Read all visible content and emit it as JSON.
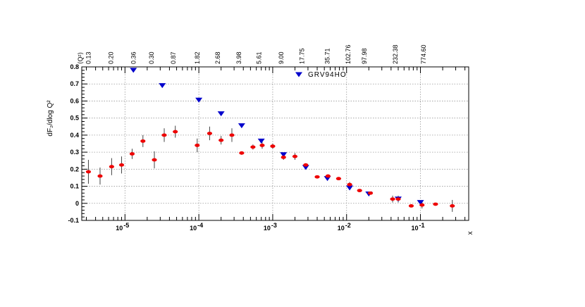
{
  "chart_data": {
    "type": "scatter",
    "ylabel": "dF₂/dlog Q²",
    "xlabel": "x",
    "top_axis_label": "⟨Q²⟩",
    "x_scale": "log",
    "xlim": [
      2.6e-06,
      0.45
    ],
    "ylim": [
      -0.1,
      0.8
    ],
    "y_ticks": [
      -0.1,
      0,
      0.1,
      0.2,
      0.3,
      0.4,
      0.5,
      0.6,
      0.7,
      0.8
    ],
    "y_tick_labels": [
      "-0.1",
      "0",
      "0.1",
      "0.2",
      "0.3",
      "0.4",
      "0.5",
      "0.6",
      "0.7",
      "0.8"
    ],
    "x_major_ticks": [
      1e-05,
      0.0001,
      0.001,
      0.01,
      0.1
    ],
    "x_tick_labels": [
      {
        "base": "10",
        "exp": " -5"
      },
      {
        "base": "10",
        "exp": " -4"
      },
      {
        "base": "10",
        "exp": " -3"
      },
      {
        "base": "10",
        "exp": " -2"
      },
      {
        "base": "10",
        "exp": " -1"
      }
    ],
    "grid": true,
    "legend_position": "top-right",
    "top_labels": [
      {
        "x": 3.2e-06,
        "text": "0.13"
      },
      {
        "x": 6.5e-06,
        "text": "0.20"
      },
      {
        "x": 1.3e-05,
        "text": "0.36"
      },
      {
        "x": 2.3e-05,
        "text": "0.30"
      },
      {
        "x": 4.5e-05,
        "text": "0.87"
      },
      {
        "x": 9.5e-05,
        "text": "1.82"
      },
      {
        "x": 0.00018,
        "text": "2.68"
      },
      {
        "x": 0.00035,
        "text": "3.98"
      },
      {
        "x": 0.00065,
        "text": "5.61"
      },
      {
        "x": 0.0013,
        "text": "9.00"
      },
      {
        "x": 0.0025,
        "text": "17.75"
      },
      {
        "x": 0.0055,
        "text": "35.71"
      },
      {
        "x": 0.0105,
        "text": "102.76"
      },
      {
        "x": 0.0175,
        "text": "97.98"
      },
      {
        "x": 0.046,
        "text": "232.38"
      },
      {
        "x": 0.11,
        "text": "774.60"
      }
    ],
    "series": [
      {
        "name": "GRV94HO",
        "marker": "triangle-down",
        "color": "#0000cc",
        "points": [
          {
            "x": 1.3e-05,
            "y": 0.78
          },
          {
            "x": 3.2e-05,
            "y": 0.69
          },
          {
            "x": 0.0001,
            "y": 0.605
          },
          {
            "x": 0.0002,
            "y": 0.525
          },
          {
            "x": 0.00038,
            "y": 0.455
          },
          {
            "x": 0.0007,
            "y": 0.365
          },
          {
            "x": 0.0014,
            "y": 0.285
          },
          {
            "x": 0.0028,
            "y": 0.21
          },
          {
            "x": 0.0055,
            "y": 0.145
          },
          {
            "x": 0.011,
            "y": 0.09
          },
          {
            "x": 0.02,
            "y": 0.055
          },
          {
            "x": 0.05,
            "y": 0.025
          },
          {
            "x": 0.1,
            "y": 0.005
          }
        ]
      },
      {
        "marker": "dot",
        "color": "#ee0000",
        "points": [
          {
            "x": 3.2e-06,
            "y": 0.185,
            "err": 0.07
          },
          {
            "x": 4.6e-06,
            "y": 0.16,
            "err": 0.05
          },
          {
            "x": 6.6e-06,
            "y": 0.215,
            "err": 0.05
          },
          {
            "x": 9e-06,
            "y": 0.225,
            "err": 0.05
          },
          {
            "x": 1.25e-05,
            "y": 0.29,
            "err": 0.03
          },
          {
            "x": 1.75e-05,
            "y": 0.365,
            "err": 0.035
          },
          {
            "x": 2.5e-05,
            "y": 0.255,
            "err": 0.05
          },
          {
            "x": 3.4e-05,
            "y": 0.4,
            "err": 0.04
          },
          {
            "x": 4.8e-05,
            "y": 0.42,
            "err": 0.035
          },
          {
            "x": 9.5e-05,
            "y": 0.34,
            "err": 0.04
          },
          {
            "x": 0.00014,
            "y": 0.41,
            "err": 0.04
          },
          {
            "x": 0.0002,
            "y": 0.37,
            "err": 0.025
          },
          {
            "x": 0.00028,
            "y": 0.4,
            "err": 0.04
          },
          {
            "x": 0.00038,
            "y": 0.295,
            "err": 0.01
          },
          {
            "x": 0.00054,
            "y": 0.33,
            "err": 0.015
          },
          {
            "x": 0.00072,
            "y": 0.34,
            "err": 0.02
          },
          {
            "x": 0.001,
            "y": 0.335,
            "err": 0.015
          },
          {
            "x": 0.0014,
            "y": 0.27,
            "err": 0.015
          },
          {
            "x": 0.002,
            "y": 0.275,
            "err": 0.02
          },
          {
            "x": 0.0028,
            "y": 0.225,
            "err": 0.01
          },
          {
            "x": 0.004,
            "y": 0.155,
            "err": 0.008
          },
          {
            "x": 0.0056,
            "y": 0.16,
            "err": 0.01
          },
          {
            "x": 0.0078,
            "y": 0.145,
            "err": 0.008
          },
          {
            "x": 0.011,
            "y": 0.11,
            "err": 0.015
          },
          {
            "x": 0.015,
            "y": 0.075,
            "err": 0.008
          },
          {
            "x": 0.021,
            "y": 0.06,
            "err": 0.008
          },
          {
            "x": 0.042,
            "y": 0.025,
            "err": 0.02
          },
          {
            "x": 0.05,
            "y": 0.025,
            "err": 0.02
          },
          {
            "x": 0.075,
            "y": -0.015,
            "err": 0.006
          },
          {
            "x": 0.105,
            "y": -0.01,
            "err": 0.02
          },
          {
            "x": 0.16,
            "y": -0.005,
            "err": 0.006
          },
          {
            "x": 0.27,
            "y": -0.015,
            "err": 0.035
          }
        ]
      }
    ]
  }
}
